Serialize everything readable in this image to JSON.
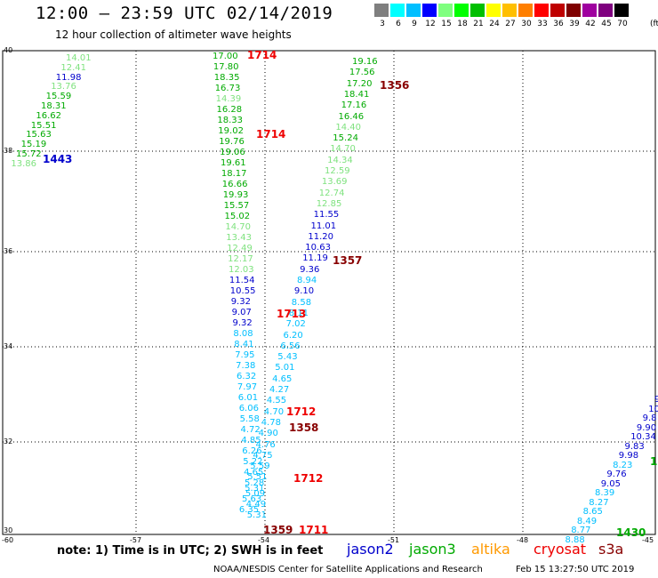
{
  "title": "12:00 – 23:59 UTC 02/14/2019",
  "subtitle": "12 hour collection of altimeter wave heights",
  "colorbar": {
    "colors": [
      "#7f7f7f",
      "#00ffff",
      "#00bfff",
      "#0000ff",
      "#7fff7f",
      "#00ff00",
      "#00bf00",
      "#ffff00",
      "#ffbf00",
      "#ff7f00",
      "#ff0000",
      "#bf0000",
      "#7f0000",
      "#9f009f",
      "#7f007f",
      "#000000"
    ],
    "labels": [
      "3",
      "6",
      "9",
      "12",
      "15",
      "18",
      "21",
      "24",
      "27",
      "30",
      "33",
      "36",
      "39",
      "42",
      "45",
      "70"
    ],
    "unit": "(ft)"
  },
  "axes": {
    "lat_labels": [
      "40",
      "38",
      "36",
      "34",
      "32",
      "30"
    ],
    "lon_labels": [
      "-60",
      "-57",
      "-54",
      "-51",
      "-48",
      "-45"
    ]
  },
  "tracks": [
    {
      "points": [
        {
          "v": "14.01",
          "c": "#7fe27f"
        },
        {
          "v": "12.41",
          "c": "#7fe27f"
        },
        {
          "v": "11.98",
          "c": "#0000cc"
        },
        {
          "v": "13.76",
          "c": "#7fe27f"
        },
        {
          "v": "15.59",
          "c": "#00aa00"
        },
        {
          "v": "18.31",
          "c": "#00aa00"
        },
        {
          "v": "16.62",
          "c": "#00aa00"
        },
        {
          "v": "15.51",
          "c": "#00aa00"
        },
        {
          "v": "15.63",
          "c": "#00aa00"
        },
        {
          "v": "15.19",
          "c": "#00aa00"
        },
        {
          "v": "15.72",
          "c": "#00aa00"
        },
        {
          "v": "13.86",
          "c": "#7fe27f"
        }
      ]
    },
    {
      "points": [
        {
          "v": "17.00",
          "c": "#00aa00"
        },
        {
          "v": "17.80",
          "c": "#00aa00"
        },
        {
          "v": "18.35",
          "c": "#00aa00"
        },
        {
          "v": "16.73",
          "c": "#00aa00"
        },
        {
          "v": "14.39",
          "c": "#7fe27f"
        },
        {
          "v": "16.28",
          "c": "#00aa00"
        },
        {
          "v": "18.33",
          "c": "#00aa00"
        },
        {
          "v": "19.02",
          "c": "#00aa00"
        },
        {
          "v": "19.76",
          "c": "#00aa00"
        },
        {
          "v": "19.06",
          "c": "#00aa00"
        },
        {
          "v": "19.61",
          "c": "#00aa00"
        },
        {
          "v": "18.17",
          "c": "#00aa00"
        },
        {
          "v": "16.66",
          "c": "#00aa00"
        },
        {
          "v": "19.93",
          "c": "#00aa00"
        },
        {
          "v": "15.57",
          "c": "#00aa00"
        },
        {
          "v": "15.02",
          "c": "#00aa00"
        },
        {
          "v": "14.70",
          "c": "#7fe27f"
        },
        {
          "v": "13.43",
          "c": "#7fe27f"
        },
        {
          "v": "12.49",
          "c": "#7fe27f"
        },
        {
          "v": "12.17",
          "c": "#7fe27f"
        },
        {
          "v": "12.03",
          "c": "#7fe27f"
        },
        {
          "v": "11.54",
          "c": "#0000cc"
        },
        {
          "v": "10.55",
          "c": "#0000cc"
        },
        {
          "v": "9.32",
          "c": "#0000cc"
        },
        {
          "v": "9.07",
          "c": "#0000cc"
        },
        {
          "v": "9.32",
          "c": "#0000cc"
        },
        {
          "v": "8.08",
          "c": "#00bfff"
        },
        {
          "v": "8.41",
          "c": "#00bfff"
        },
        {
          "v": "7.95",
          "c": "#00bfff"
        },
        {
          "v": "7.38",
          "c": "#00bfff"
        },
        {
          "v": "6.32",
          "c": "#00bfff"
        },
        {
          "v": "7.97",
          "c": "#00bfff"
        },
        {
          "v": "6.01",
          "c": "#00bfff"
        },
        {
          "v": "6.06",
          "c": "#00bfff"
        },
        {
          "v": "5.58",
          "c": "#00bfff"
        },
        {
          "v": "4.72",
          "c": "#00bfff"
        },
        {
          "v": "4.85",
          "c": "#00bfff"
        },
        {
          "v": "6.26",
          "c": "#00bfff"
        },
        {
          "v": "5.22",
          "c": "#00bfff"
        },
        {
          "v": "4.65",
          "c": "#00bfff"
        },
        {
          "v": "5.28",
          "c": "#00bfff"
        },
        {
          "v": "5.09",
          "c": "#00bfff"
        },
        {
          "v": "4.49",
          "c": "#00bfff"
        },
        {
          "v": "5.31",
          "c": "#00bfff"
        }
      ]
    },
    {
      "points": [
        {
          "v": "19.16",
          "c": "#00aa00"
        },
        {
          "v": "17.56",
          "c": "#00aa00"
        },
        {
          "v": "17.20",
          "c": "#00aa00"
        },
        {
          "v": "18.41",
          "c": "#00aa00"
        },
        {
          "v": "17.16",
          "c": "#00aa00"
        },
        {
          "v": "16.46",
          "c": "#00aa00"
        },
        {
          "v": "14.40",
          "c": "#7fe27f"
        },
        {
          "v": "15.24",
          "c": "#00aa00"
        },
        {
          "v": "14.70",
          "c": "#7fe27f"
        },
        {
          "v": "14.34",
          "c": "#7fe27f"
        },
        {
          "v": "12.59",
          "c": "#7fe27f"
        },
        {
          "v": "13.69",
          "c": "#7fe27f"
        },
        {
          "v": "12.74",
          "c": "#7fe27f"
        },
        {
          "v": "12.85",
          "c": "#7fe27f"
        },
        {
          "v": "11.55",
          "c": "#0000cc"
        },
        {
          "v": "11.01",
          "c": "#0000cc"
        },
        {
          "v": "11.20",
          "c": "#0000cc"
        },
        {
          "v": "10.63",
          "c": "#0000cc"
        },
        {
          "v": "11.19",
          "c": "#0000cc"
        },
        {
          "v": "9.36",
          "c": "#0000cc"
        },
        {
          "v": "8.94",
          "c": "#00bfff"
        },
        {
          "v": "9.10",
          "c": "#0000cc"
        },
        {
          "v": "8.58",
          "c": "#00bfff"
        },
        {
          "v": "8.11",
          "c": "#00bfff"
        },
        {
          "v": "7.02",
          "c": "#00bfff"
        },
        {
          "v": "6.20",
          "c": "#00bfff"
        },
        {
          "v": "6.56",
          "c": "#00bfff"
        },
        {
          "v": "5.43",
          "c": "#00bfff"
        },
        {
          "v": "5.01",
          "c": "#00bfff"
        },
        {
          "v": "4.65",
          "c": "#00bfff"
        },
        {
          "v": "4.27",
          "c": "#00bfff"
        },
        {
          "v": "4.55",
          "c": "#00bfff"
        },
        {
          "v": "4.70",
          "c": "#00bfff"
        },
        {
          "v": "4.78",
          "c": "#00bfff"
        },
        {
          "v": "4.90",
          "c": "#00bfff"
        },
        {
          "v": "4.76",
          "c": "#00bfff"
        },
        {
          "v": "4.75",
          "c": "#00bfff"
        },
        {
          "v": "5.59",
          "c": "#00bfff"
        },
        {
          "v": "5.51",
          "c": "#00bfff"
        },
        {
          "v": "5.31",
          "c": "#00bfff"
        },
        {
          "v": "5.63",
          "c": "#00bfff"
        },
        {
          "v": "6.35",
          "c": "#00bfff"
        }
      ]
    },
    {
      "points": [
        {
          "v": "9",
          "c": "#0000cc"
        },
        {
          "v": "10.",
          "c": "#0000cc"
        },
        {
          "v": "9.8",
          "c": "#0000cc"
        },
        {
          "v": "9.90",
          "c": "#0000cc"
        },
        {
          "v": "10.34",
          "c": "#0000cc"
        },
        {
          "v": "9.83",
          "c": "#0000cc"
        },
        {
          "v": "9.98",
          "c": "#0000cc"
        },
        {
          "v": "8.23",
          "c": "#00bfff"
        },
        {
          "v": "9.76",
          "c": "#0000cc"
        },
        {
          "v": "9.05",
          "c": "#0000cc"
        },
        {
          "v": "8.39",
          "c": "#00bfff"
        },
        {
          "v": "8.27",
          "c": "#00bfff"
        },
        {
          "v": "8.65",
          "c": "#00bfff"
        },
        {
          "v": "8.49",
          "c": "#00bfff"
        },
        {
          "v": "8.77",
          "c": "#00bfff"
        },
        {
          "v": "8.88",
          "c": "#00bfff"
        }
      ]
    }
  ],
  "pass_times": [
    {
      "t": "1714",
      "c": "#ee0000"
    },
    {
      "t": "1714",
      "c": "#ee0000"
    },
    {
      "t": "1356",
      "c": "#880000"
    },
    {
      "t": "1443",
      "c": "#0000cc"
    },
    {
      "t": "1357",
      "c": "#880000"
    },
    {
      "t": "1713",
      "c": "#ee0000"
    },
    {
      "t": "1712",
      "c": "#ee0000"
    },
    {
      "t": "1358",
      "c": "#880000"
    },
    {
      "t": "1712",
      "c": "#ee0000"
    },
    {
      "t": "1359",
      "c": "#880000"
    },
    {
      "t": "1711",
      "c": "#ee0000"
    },
    {
      "t": "1",
      "c": "#00aa00"
    },
    {
      "t": "1430",
      "c": "#00aa00"
    }
  ],
  "note": "note:  1) Time is in UTC;  2) SWH is in feet",
  "satellites": [
    {
      "name": "jason2",
      "color": "#0000cc"
    },
    {
      "name": "jason3",
      "color": "#00aa00"
    },
    {
      "name": "altika",
      "color": "#ff9900"
    },
    {
      "name": "cryosat",
      "color": "#ee0000"
    },
    {
      "name": "s3a",
      "color": "#880000"
    }
  ],
  "credit": "NOAA/NESDIS Center for Satellite Applications and Research",
  "timestamp": "Feb 15 13:27:50 UTC 2019"
}
